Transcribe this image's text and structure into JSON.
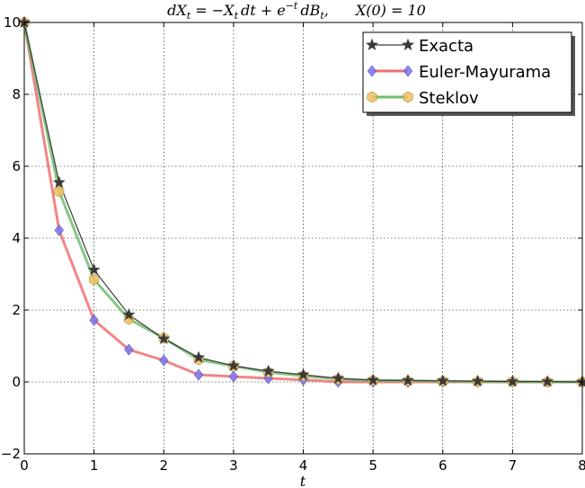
{
  "chart_data": {
    "type": "line",
    "title": "dXt = −Xt dt + e^(−t) dBt,   X(0) = 10",
    "title_parts": {
      "equation": "dX",
      "equation_sub": "t",
      "eq_rest_1": " = −X",
      "eq_rest_sub": "t",
      "eq_rest_2": "dt + e",
      "eq_sup": "−t",
      "eq_rest_3": "dB",
      "eq_rest_sub2": "t",
      "eq_comma": ",",
      "initial": "X(0) = 10"
    },
    "xlabel": "t",
    "ylabel": "",
    "xlim": [
      0,
      8
    ],
    "ylim": [
      -2,
      10
    ],
    "xticks": [
      "0",
      "1",
      "2",
      "3",
      "4",
      "5",
      "6",
      "7",
      "8"
    ],
    "yticks": [
      "−2",
      "0",
      "2",
      "4",
      "6",
      "8",
      "10"
    ],
    "grid": true,
    "legend_position": "top-right",
    "x": [
      0,
      0.5,
      1,
      1.5,
      2,
      2.5,
      3,
      3.5,
      4,
      4.5,
      5,
      5.5,
      6,
      6.5,
      7,
      7.5,
      8
    ],
    "series": [
      {
        "name": "Exacta",
        "color": "#3a3a3a",
        "marker": "star",
        "values": [
          10,
          5.55,
          3.12,
          1.87,
          1.2,
          0.68,
          0.45,
          0.3,
          0.2,
          0.1,
          0.05,
          0.04,
          0.03,
          0.02,
          0.01,
          0.01,
          0.0
        ]
      },
      {
        "name": "Euler-Mayurama",
        "color": "#f07070",
        "marker_color": "#7a74f0",
        "marker": "diamond",
        "values": [
          10,
          4.22,
          1.72,
          0.9,
          0.6,
          0.2,
          0.15,
          0.1,
          0.06,
          0.0,
          0.0,
          0.0,
          0.0,
          0.0,
          0.0,
          0.0,
          0.0
        ]
      },
      {
        "name": "Steklov",
        "color": "#6fbf6f",
        "marker_color": "#f0c060",
        "marker": "hexagon",
        "values": [
          10,
          5.3,
          2.85,
          1.75,
          1.22,
          0.62,
          0.44,
          0.27,
          0.17,
          0.08,
          0.04,
          0.03,
          0.02,
          0.01,
          0.01,
          0.0,
          0.0
        ]
      }
    ]
  }
}
